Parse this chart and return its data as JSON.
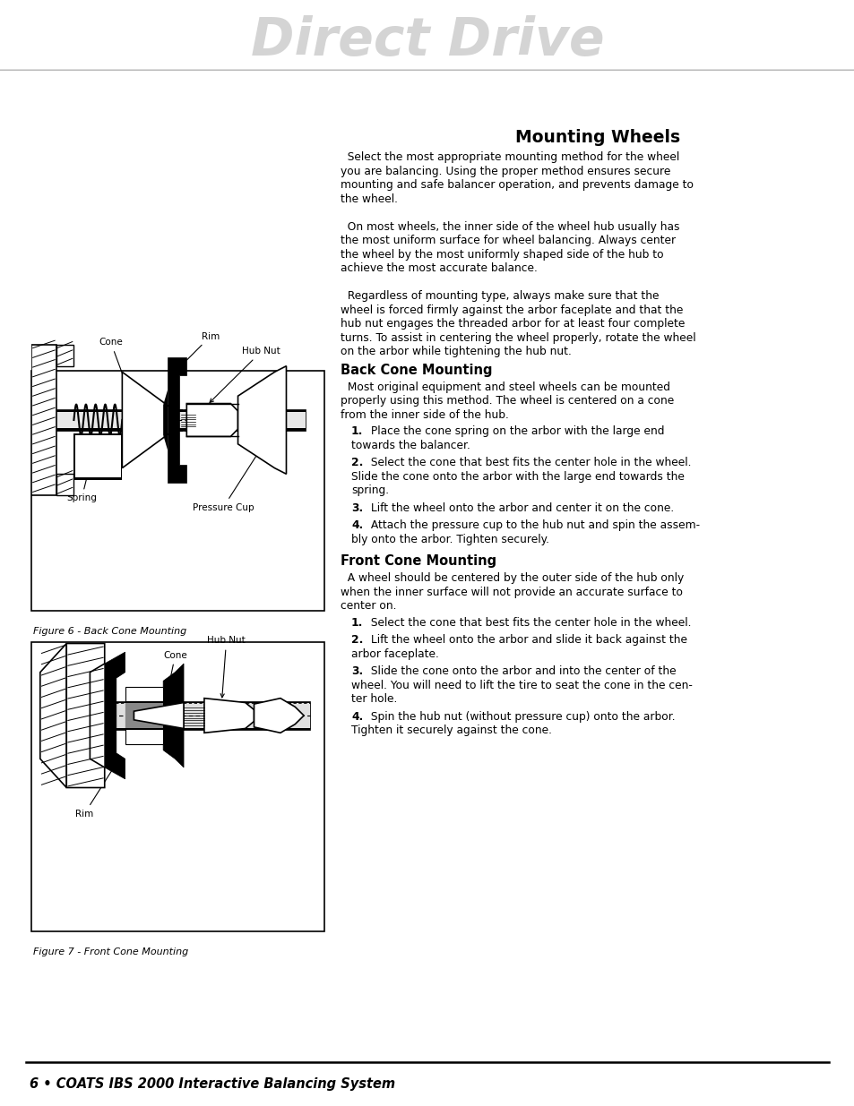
{
  "page_bg": "#ffffff",
  "header_text": "Direct Drive",
  "header_text_color": "#d4d4d4",
  "title": "Mounting Wheels",
  "footer_text": "6 • COATS IBS 2000 Interactive Balancing System",
  "section1_heading": "Back Cone Mounting",
  "section2_heading": "Front Cone Mounting",
  "fig6_caption": "Figure 6 - Back Cone Mounting",
  "fig7_caption": "Figure 7 - Front Cone Mounting",
  "intro_lines": [
    "  Select the most appropriate mounting method for the wheel",
    "you are balancing. Using the proper method ensures secure",
    "mounting and safe balancer operation, and prevents damage to",
    "the wheel.",
    "",
    "  On most wheels, the inner side of the wheel hub usually has",
    "the most uniform surface for wheel balancing. Always center",
    "the wheel by the most uniformly shaped side of the hub to",
    "achieve the most accurate balance.",
    "",
    "  Regardless of mounting type, always make sure that the",
    "wheel is forced firmly against the arbor faceplate and that the",
    "hub nut engages the threaded arbor for at least four complete",
    "turns. To assist in centering the wheel properly, rotate the wheel",
    "on the arbor while tightening the hub nut."
  ],
  "back_cone_body": [
    "  Most original equipment and steel wheels can be mounted",
    "properly using this method. The wheel is centered on a cone",
    "from the inner side of the hub."
  ],
  "back_steps": [
    [
      "1.",
      " Place the cone spring on the arbor with the large end",
      "towards the balancer."
    ],
    [
      "2.",
      " Select the cone that best fits the center hole in the wheel.",
      "Slide the cone onto the arbor with the large end towards the",
      "spring."
    ],
    [
      "3.",
      " Lift the wheel onto the arbor and center it on the cone."
    ],
    [
      "4.",
      " Attach the pressure cup to the hub nut and spin the assem-",
      "bly onto the arbor. Tighten securely."
    ]
  ],
  "front_cone_body": [
    "  A wheel should be centered by the outer side of the hub only",
    "when the inner surface will not provide an accurate surface to",
    "center on."
  ],
  "front_steps": [
    [
      "1.",
      " Select the cone that best fits the center hole in the wheel."
    ],
    [
      "2.",
      " Lift the wheel onto the arbor and slide it back against the",
      "arbor faceplate."
    ],
    [
      "3.",
      " Slide the cone onto the arbor and into the center of the",
      "wheel. You will need to lift the tire to seat the cone in the cen-",
      "ter hole."
    ],
    [
      "4.",
      " Spin the hub nut (without pressure cup) onto the arbor.",
      "Tighten it securely against the cone."
    ]
  ]
}
